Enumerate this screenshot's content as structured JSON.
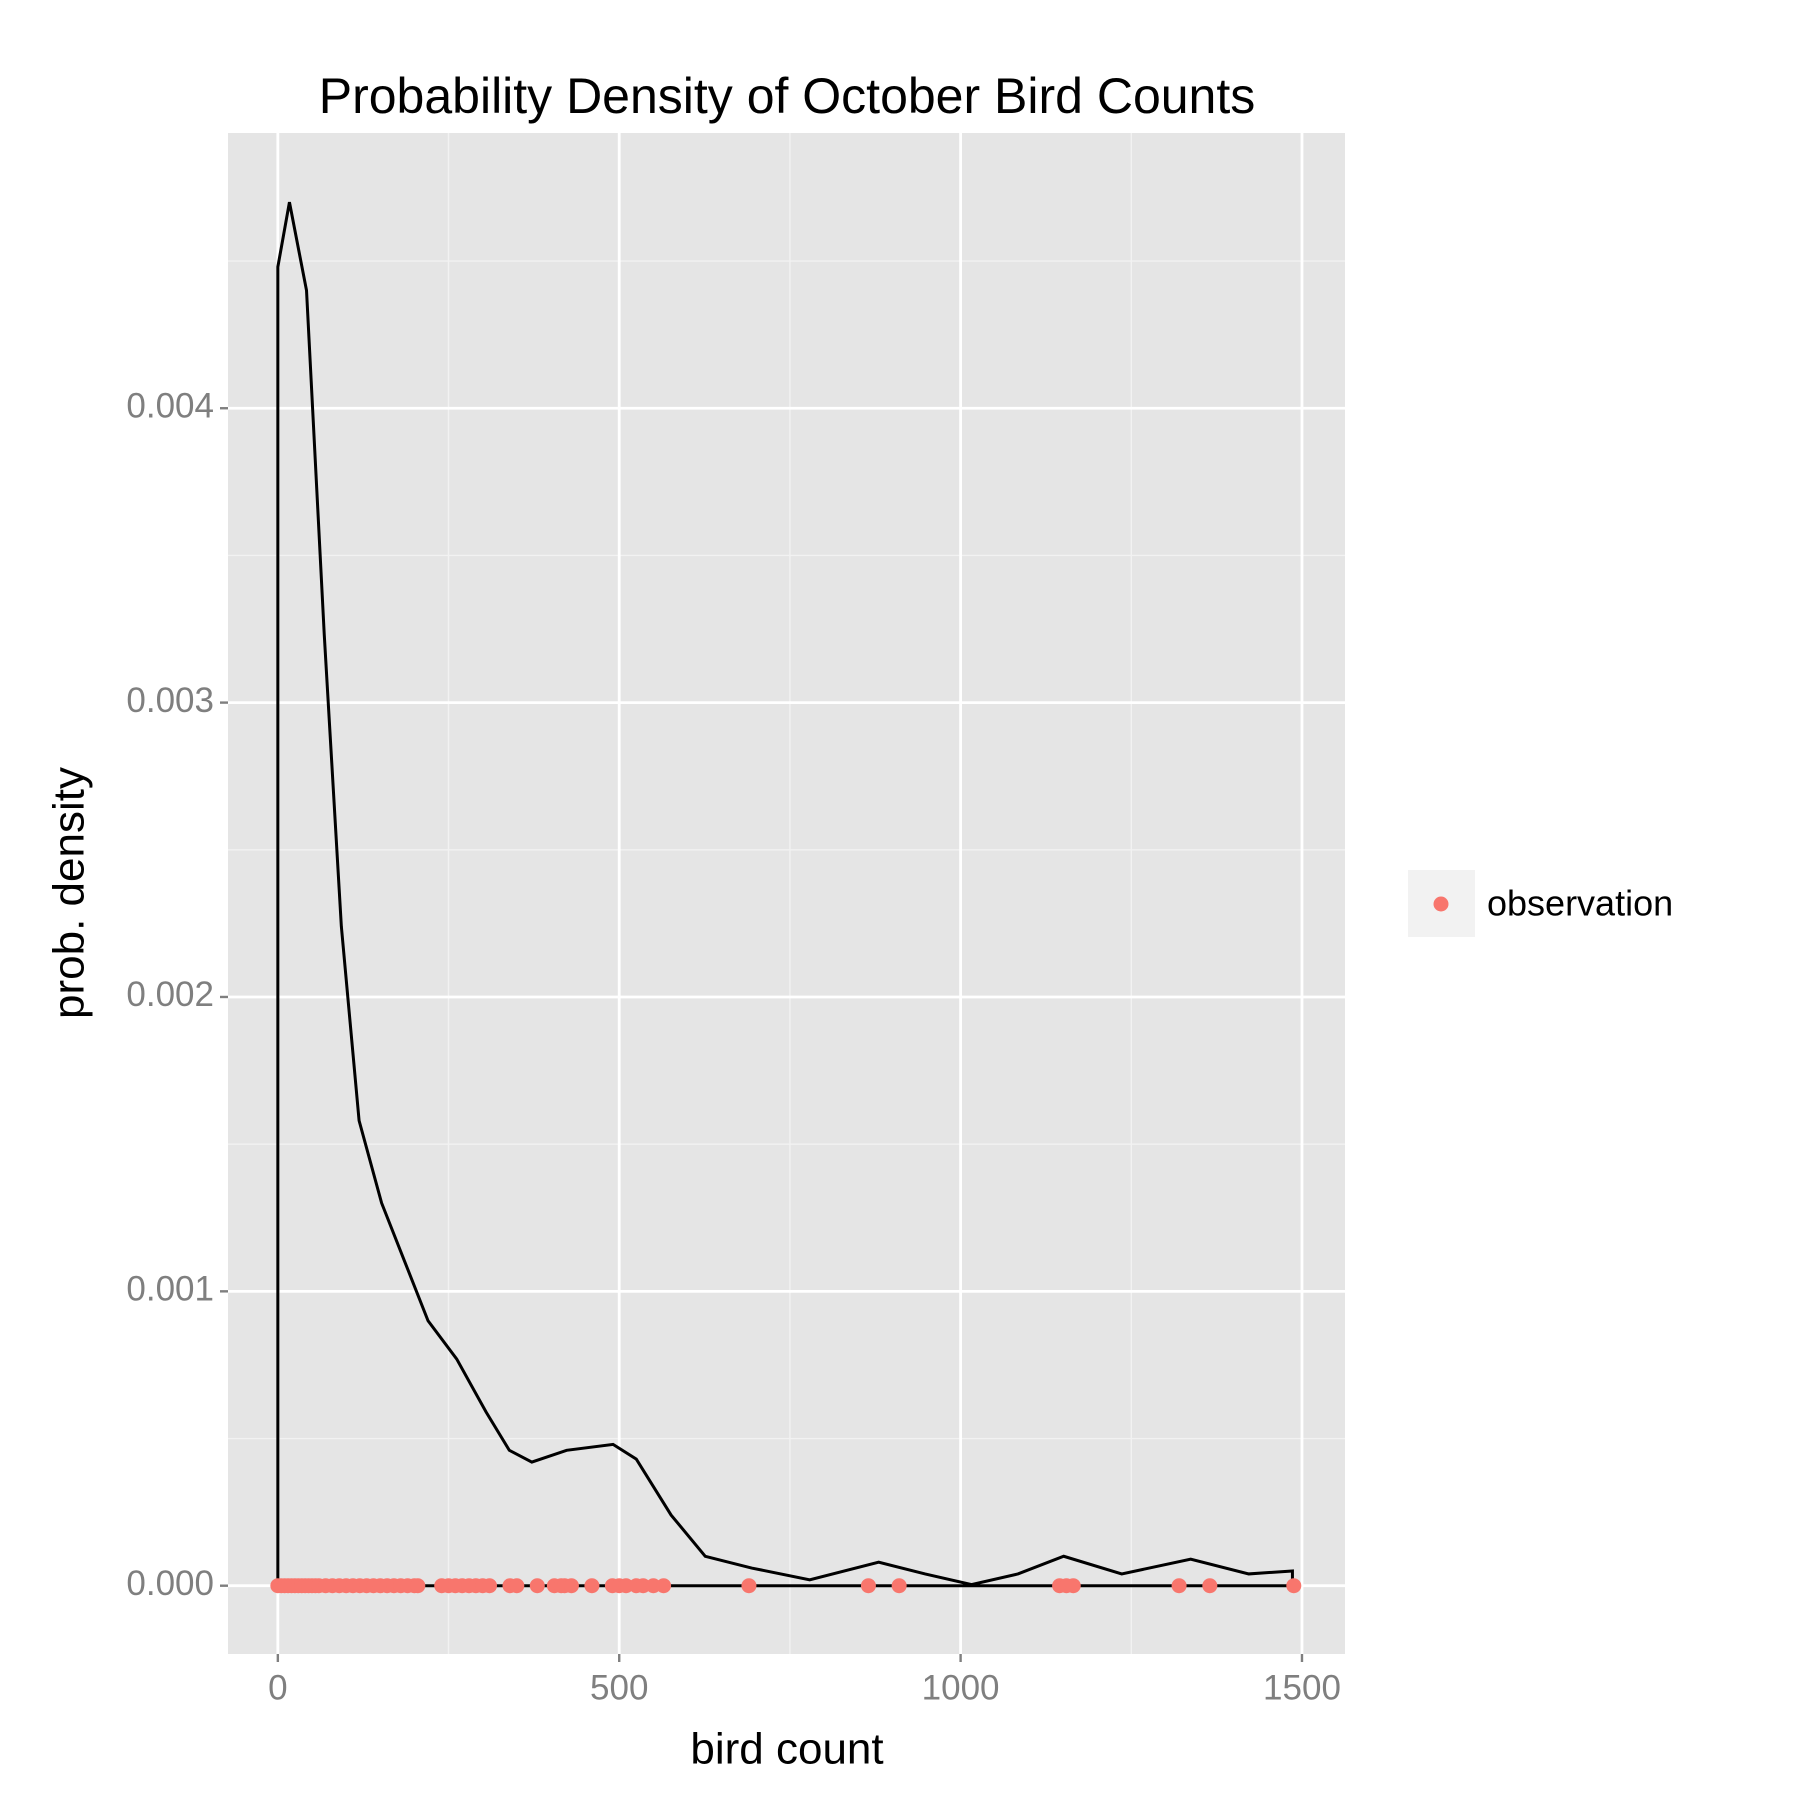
{
  "chart_data": {
    "type": "density",
    "title": "Probability Density of October Bird Counts",
    "xlabel": "bird count",
    "ylabel": "prob. density",
    "line_color": "#000000",
    "x": [
      0,
      0,
      17,
      42,
      68,
      93,
      119,
      152,
      186,
      220,
      262,
      305,
      339,
      372,
      423,
      491,
      525,
      576,
      626,
      694,
      779,
      880,
      948,
      1016,
      1084,
      1151,
      1236,
      1337,
      1422,
      1486,
      1486,
      0
    ],
    "y": [
      0,
      0.00448,
      0.0047,
      0.0044,
      0.00323,
      0.00224,
      0.00158,
      0.0013,
      0.0011,
      0.0009,
      0.00077,
      0.00059,
      0.00046,
      0.00042,
      0.00046,
      0.00048,
      0.00043,
      0.00024,
      0.0001,
      6e-05,
      2e-05,
      8e-05,
      4e-05,
      4e-06,
      4e-05,
      0.0001,
      4e-05,
      9e-05,
      4e-05,
      5e-05,
      0,
      0
    ],
    "points": {
      "name": "observation",
      "color": "#f8766d",
      "x": [
        0,
        5,
        10,
        15,
        20,
        25,
        30,
        35,
        40,
        45,
        50,
        55,
        60,
        70,
        80,
        90,
        100,
        110,
        120,
        130,
        140,
        150,
        160,
        170,
        180,
        190,
        200,
        205,
        240,
        250,
        260,
        270,
        280,
        290,
        300,
        310,
        340,
        350,
        380,
        405,
        415,
        420,
        430,
        460,
        490,
        500,
        510,
        525,
        535,
        550,
        565,
        690,
        865,
        910,
        1145,
        1155,
        1165,
        1320,
        1365,
        1488
      ],
      "values": [
        0,
        0,
        0,
        0,
        0,
        0,
        0,
        0,
        0,
        0,
        0,
        0,
        0,
        0,
        0,
        0,
        0,
        0,
        0,
        0,
        0,
        0,
        0,
        0,
        0,
        0,
        0,
        0,
        0,
        0,
        0,
        0,
        0,
        0,
        0,
        0,
        0,
        0,
        0,
        0,
        0,
        0,
        0,
        0,
        0,
        0,
        0,
        0,
        0,
        0,
        0,
        0,
        0,
        0,
        0,
        0,
        0,
        0,
        0,
        0
      ]
    },
    "xlim": [
      -73,
      1563
    ],
    "ylim": [
      -0.000232,
      0.004935
    ],
    "xticks": [
      0,
      500,
      1000,
      1500
    ],
    "yticks": [
      {
        "value": 0,
        "label": "0.000"
      },
      {
        "value": 0.001,
        "label": "0.001"
      },
      {
        "value": 0.002,
        "label": "0.002"
      },
      {
        "value": 0.003,
        "label": "0.003"
      },
      {
        "value": 0.004,
        "label": "0.004"
      }
    ],
    "xminor": [
      250,
      750,
      1250
    ],
    "yminor": [
      0.0005,
      0.0015,
      0.0025,
      0.0035,
      0.0045
    ],
    "grid": true,
    "legend": "right"
  }
}
